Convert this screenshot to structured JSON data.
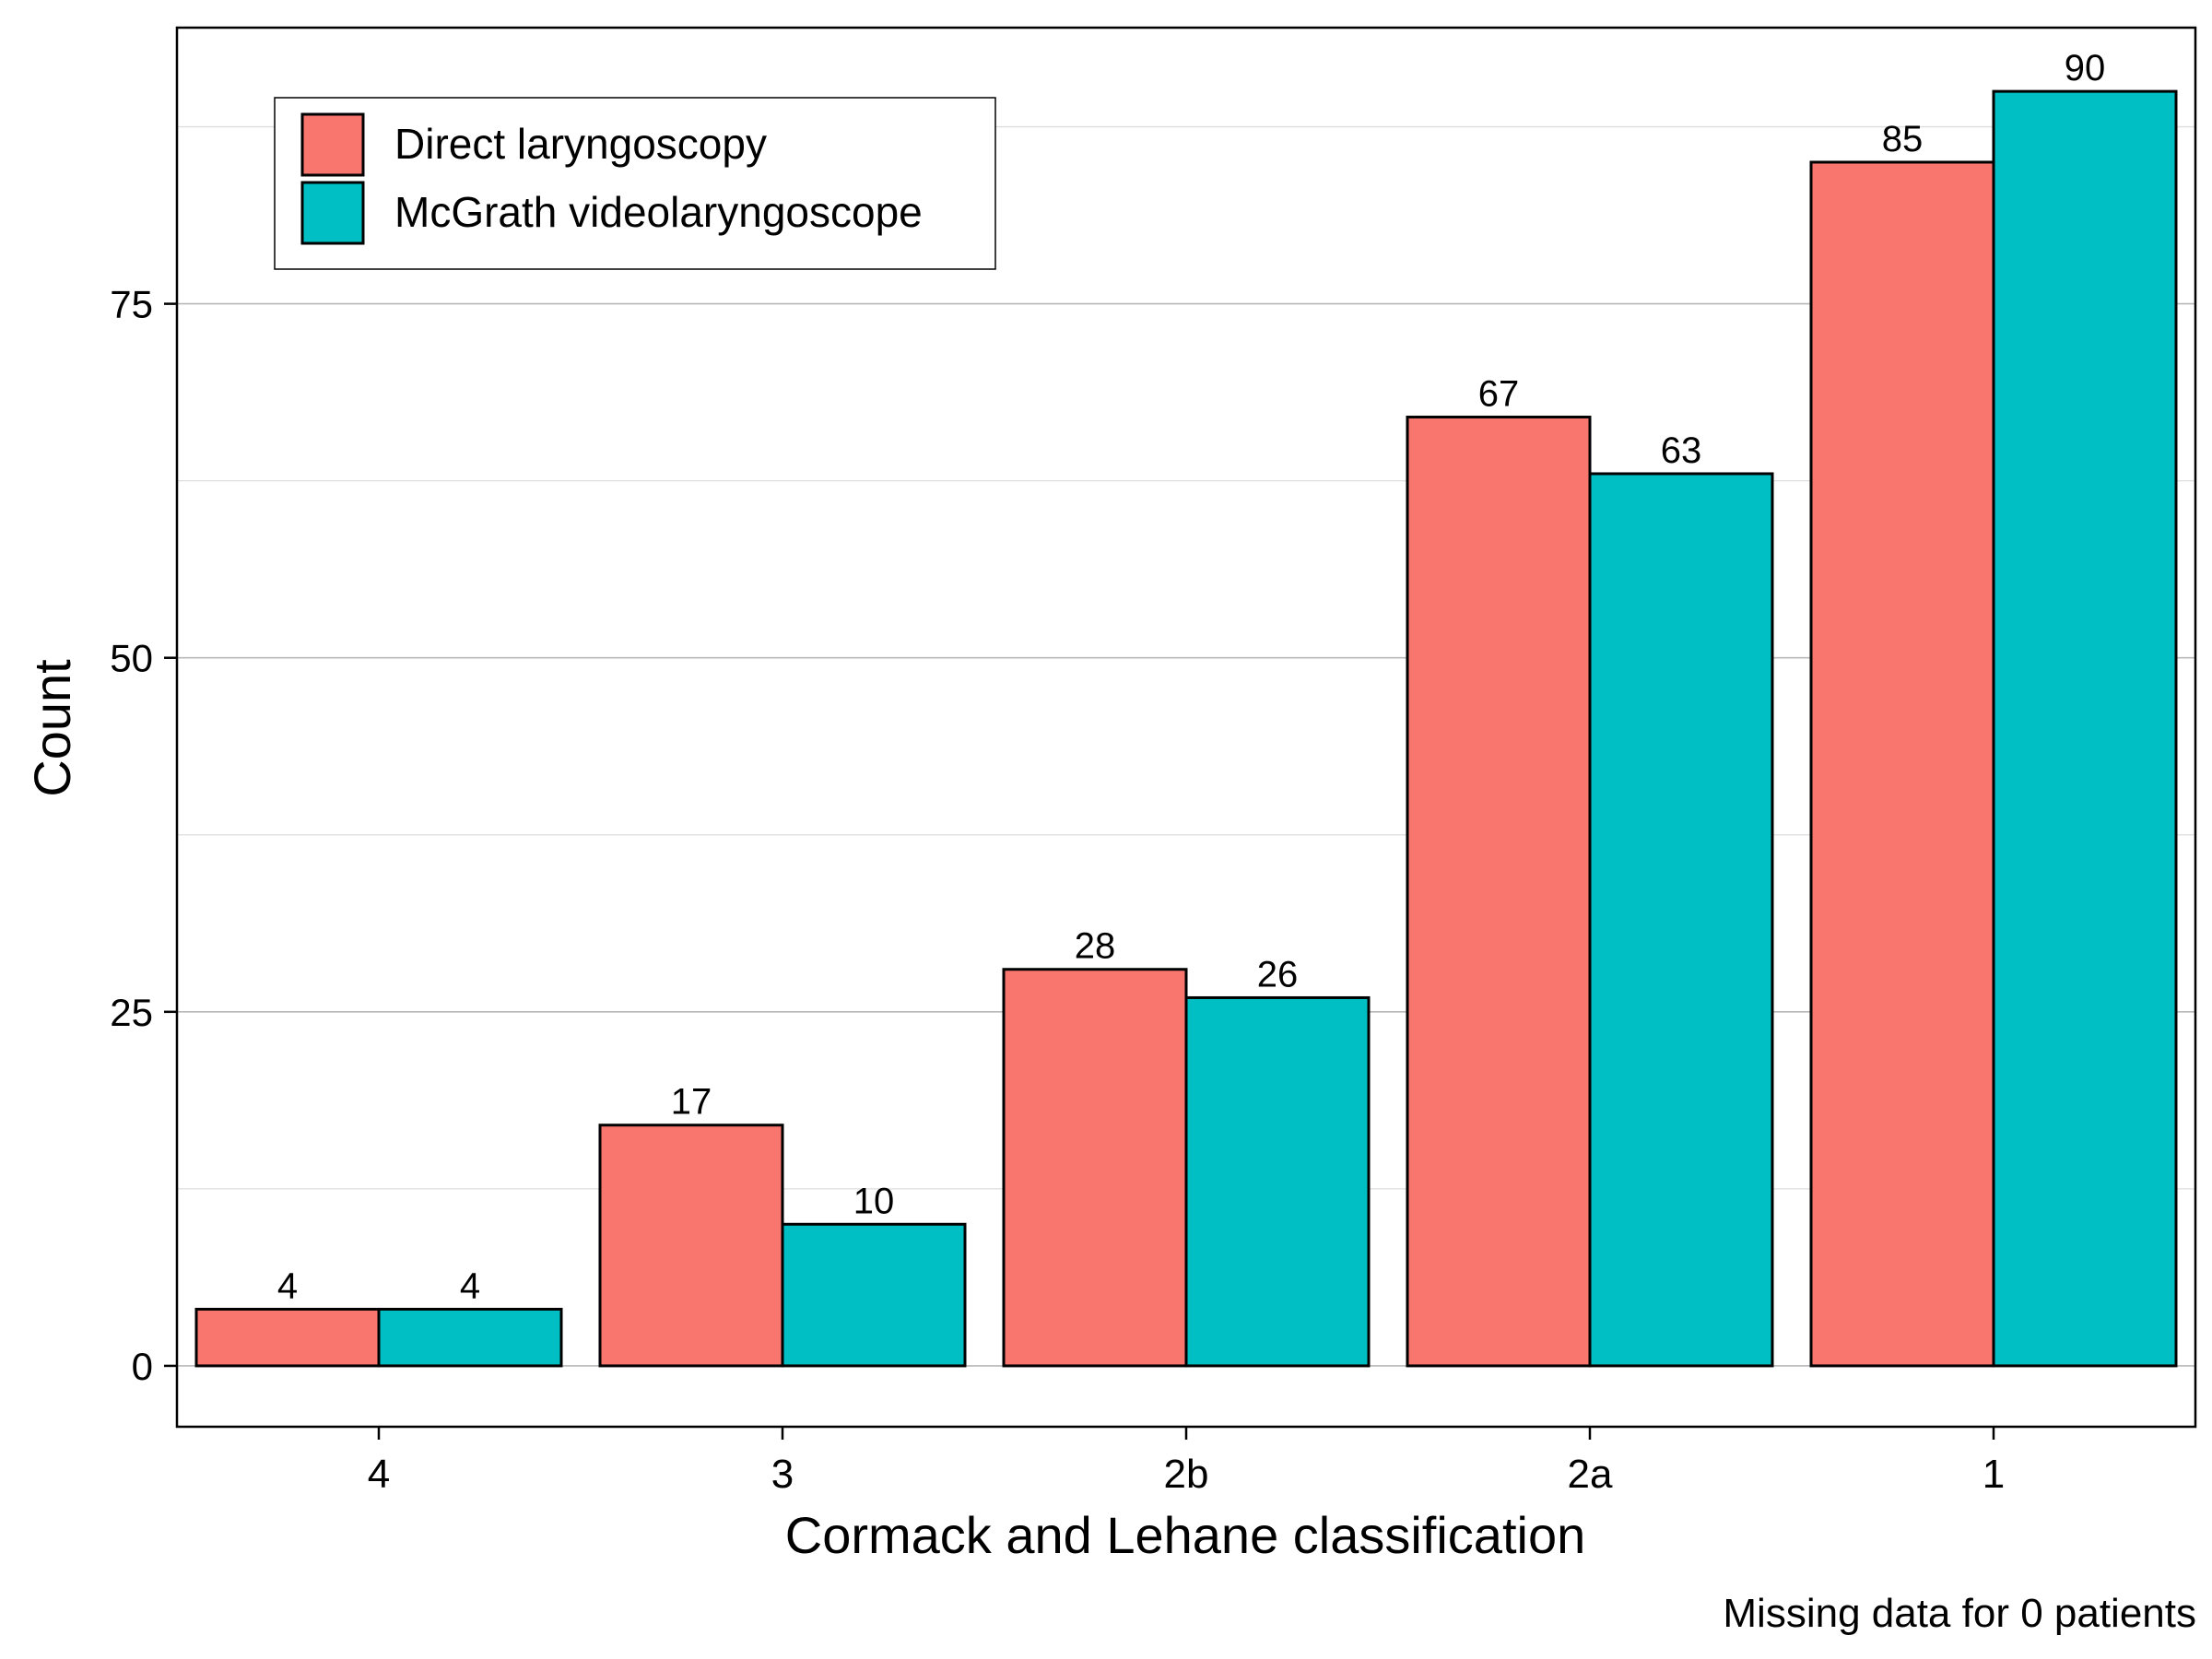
{
  "chart_data": {
    "type": "bar",
    "xlabel": "Cormack and Lehane classification",
    "ylabel": "Count",
    "categories": [
      "4",
      "3",
      "2b",
      "2a",
      "1"
    ],
    "series": [
      {
        "name": "Direct laryngoscopy",
        "values": [
          4,
          17,
          28,
          67,
          85
        ],
        "color": "#F8766D"
      },
      {
        "name": "McGrath videolaryngoscope",
        "values": [
          4,
          10,
          26,
          63,
          90
        ],
        "color": "#00BFC4"
      }
    ],
    "ylim": [
      -4.3,
      94.5
    ],
    "yticks": [
      0,
      25,
      50,
      75
    ],
    "grid": true,
    "legend_position": "top-left",
    "caption": "Missing data for 0 patients"
  }
}
